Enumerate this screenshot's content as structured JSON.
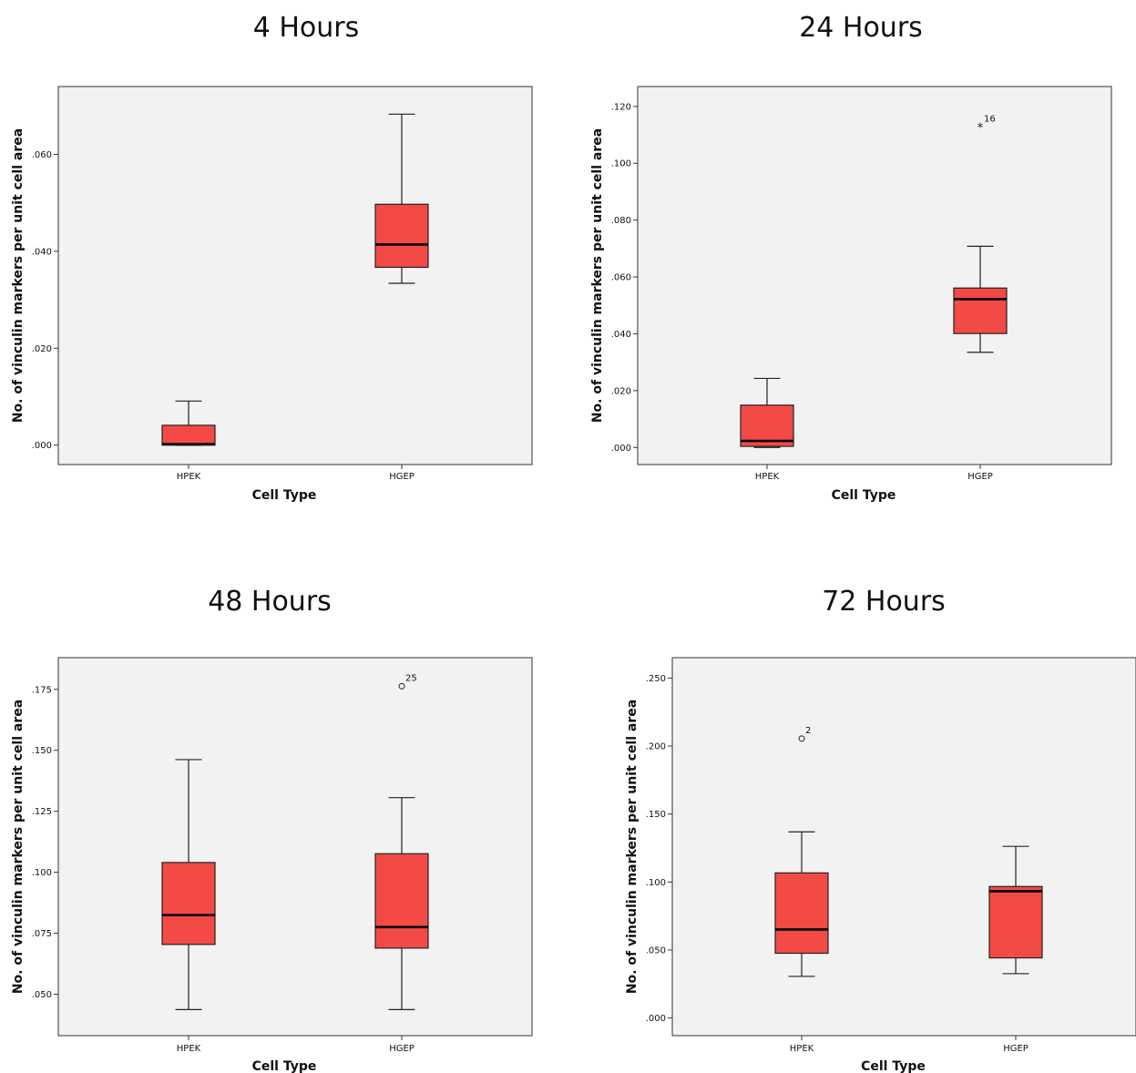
{
  "box_color": "#f44a45",
  "plot_bg": "#f2f2f2",
  "chart_data": [
    {
      "type": "box",
      "title": "4 Hours",
      "xlabel": "Cell Type",
      "ylabel": "No. of vinculin markers per unit cell area",
      "categories": [
        "HPEK",
        "HGEP"
      ],
      "ylim": [
        -0.004,
        0.074
      ],
      "yticks": [
        0.0,
        0.02,
        0.04,
        0.06
      ],
      "ytick_labels": [
        ".000",
        ".020",
        ".040",
        ".060"
      ],
      "boxes": [
        {
          "min": 0.0,
          "q1": 0.0,
          "median": 0.0002,
          "q3": 0.0041,
          "max": 0.0091,
          "outliers": []
        },
        {
          "min": 0.0334,
          "q1": 0.0367,
          "median": 0.0414,
          "q3": 0.0497,
          "max": 0.0683,
          "outliers": []
        }
      ]
    },
    {
      "type": "box",
      "title": "24 Hours",
      "xlabel": "Cell Type",
      "ylabel": "No. of vinculin markers per unit cell area",
      "categories": [
        "HPEK",
        "HGEP"
      ],
      "ylim": [
        -0.006,
        0.127
      ],
      "yticks": [
        0.0,
        0.02,
        0.04,
        0.06,
        0.08,
        0.1,
        0.12
      ],
      "ytick_labels": [
        ".000",
        ".020",
        ".040",
        ".060",
        ".080",
        ".100",
        ".120"
      ],
      "boxes": [
        {
          "min": 0.0,
          "q1": 0.0004,
          "median": 0.0023,
          "q3": 0.0149,
          "max": 0.0243,
          "outliers": []
        },
        {
          "min": 0.0335,
          "q1": 0.0401,
          "median": 0.0522,
          "q3": 0.0561,
          "max": 0.0708,
          "outliers": [
            {
              "value": 0.1127,
              "label": "16",
              "marker": "star"
            }
          ]
        }
      ]
    },
    {
      "type": "box",
      "title": "48 Hours",
      "xlabel": "Cell Type",
      "ylabel": "No. of vinculin markers per unit cell area",
      "categories": [
        "HPEK",
        "HGEP"
      ],
      "ylim": [
        0.033,
        0.188
      ],
      "yticks": [
        0.05,
        0.075,
        0.1,
        0.125,
        0.15,
        0.175
      ],
      "ytick_labels": [
        ".050",
        ".075",
        ".100",
        ".125",
        ".150",
        ".175"
      ],
      "boxes": [
        {
          "min": 0.0437,
          "q1": 0.0704,
          "median": 0.0824,
          "q3": 0.104,
          "max": 0.1462,
          "outliers": []
        },
        {
          "min": 0.0437,
          "q1": 0.0689,
          "median": 0.0775,
          "q3": 0.1076,
          "max": 0.1306,
          "outliers": [
            {
              "value": 0.1763,
              "label": "25",
              "marker": "circle"
            }
          ]
        }
      ]
    },
    {
      "type": "box",
      "title": "72 Hours",
      "xlabel": "Cell Type",
      "ylabel": "No. of vinculin markers per unit cell area",
      "categories": [
        "HPEK",
        "HGEP"
      ],
      "ylim": [
        -0.013,
        0.265
      ],
      "yticks": [
        0.0,
        0.05,
        0.1,
        0.15,
        0.2,
        0.25
      ],
      "ytick_labels": [
        ".000",
        ".050",
        ".100",
        ".150",
        ".200",
        ".250"
      ],
      "boxes": [
        {
          "min": 0.0306,
          "q1": 0.0476,
          "median": 0.0651,
          "q3": 0.1067,
          "max": 0.1369,
          "outliers": [
            {
              "value": 0.2055,
              "label": "2",
              "marker": "circle"
            }
          ]
        },
        {
          "min": 0.0326,
          "q1": 0.0442,
          "median": 0.0932,
          "q3": 0.0967,
          "max": 0.1262,
          "outliers": []
        }
      ]
    }
  ]
}
